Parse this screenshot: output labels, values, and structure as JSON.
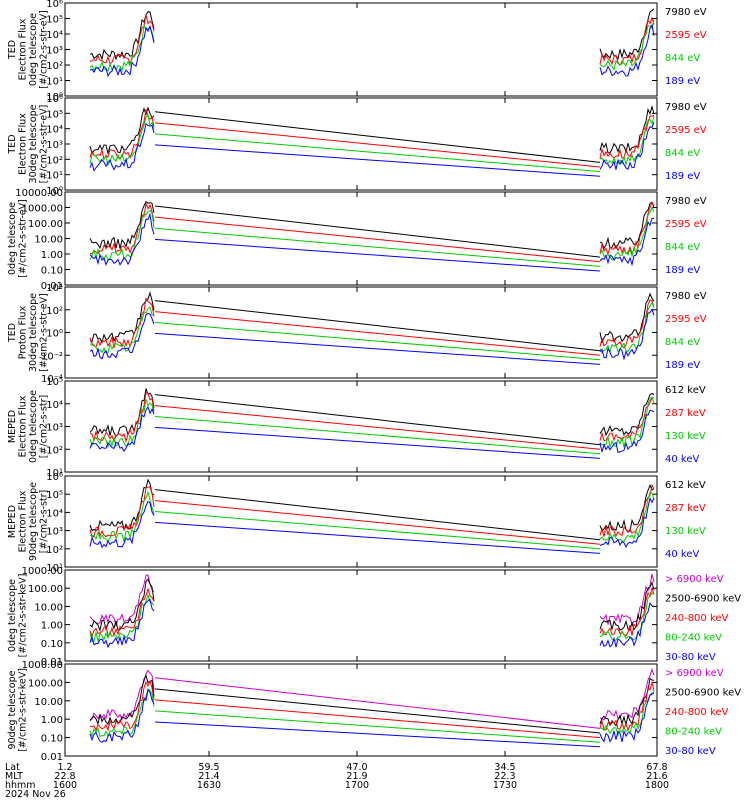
{
  "chart_data": [
    {
      "type": "line",
      "ylabel": [
        "TED",
        "Electron Flux",
        "0deg telescope",
        "[#/cm2-s-str-eV]"
      ],
      "ytick_labels": [
        "10⁶",
        "10⁵",
        "10⁴",
        "10³",
        "10²",
        "10¹",
        "10⁰"
      ],
      "series": [
        {
          "name": "7980 eV",
          "color": "#000000"
        },
        {
          "name": "2595 eV",
          "color": "#ff0000"
        },
        {
          "name": "844 eV",
          "color": "#00cc00"
        },
        {
          "name": "189 eV",
          "color": "#0000ff"
        }
      ]
    },
    {
      "type": "line",
      "ylabel": [
        "TED",
        "Electron Flux",
        "30deg telescope",
        "[#/cm2-s-str-eV]"
      ],
      "ytick_labels": [
        "10⁶",
        "10⁵",
        "10⁴",
        "10³",
        "10²",
        "10¹",
        "10⁰"
      ],
      "series": [
        {
          "name": "7980 eV",
          "color": "#000000"
        },
        {
          "name": "2595 eV",
          "color": "#ff0000"
        },
        {
          "name": "844 eV",
          "color": "#00cc00"
        },
        {
          "name": "189 eV",
          "color": "#0000ff"
        }
      ]
    },
    {
      "type": "line",
      "ylabel": [
        "0deg telescope",
        "[#/cm2-s-str-eV]"
      ],
      "ytick_labels": [
        "10000.00",
        "1000.00",
        "100.00",
        "10.00",
        "1.00",
        "0.10",
        "0.01"
      ],
      "series": [
        {
          "name": "7980 eV",
          "color": "#000000"
        },
        {
          "name": "2595 eV",
          "color": "#ff0000"
        },
        {
          "name": "844 eV",
          "color": "#00cc00"
        },
        {
          "name": "189 eV",
          "color": "#0000ff"
        }
      ]
    },
    {
      "type": "line",
      "ylabel": [
        "TED",
        "Proton Flux",
        "30deg telescope",
        "[#/cm2-s-str-eV]"
      ],
      "ytick_labels": [
        "10⁴",
        "10²",
        "10⁰",
        "10⁻²",
        "10⁻⁴"
      ],
      "series": [
        {
          "name": "7980 eV",
          "color": "#000000"
        },
        {
          "name": "2595 eV",
          "color": "#ff0000"
        },
        {
          "name": "844 eV",
          "color": "#00cc00"
        },
        {
          "name": "189 eV",
          "color": "#0000ff"
        }
      ]
    },
    {
      "type": "line",
      "ylabel": [
        "MEPED",
        "Electron Flux",
        "0deg telescope",
        "[#/cm2-s-str]"
      ],
      "ytick_labels": [
        "10⁵",
        "10⁴",
        "10³",
        "10²",
        "10¹"
      ],
      "series": [
        {
          "name": "612 keV",
          "color": "#000000"
        },
        {
          "name": "287 keV",
          "color": "#ff0000"
        },
        {
          "name": "130 keV",
          "color": "#00cc00"
        },
        {
          "name": "40 keV",
          "color": "#0000ff"
        }
      ]
    },
    {
      "type": "line",
      "ylabel": [
        "MEPED",
        "Electron Flux",
        "90deg telescope",
        "[#/cm2-s-str]"
      ],
      "ytick_labels": [
        "10⁶",
        "10⁵",
        "10⁴",
        "10³",
        "10²",
        "10¹"
      ],
      "series": [
        {
          "name": "612 keV",
          "color": "#000000"
        },
        {
          "name": "287 keV",
          "color": "#ff0000"
        },
        {
          "name": "130 keV",
          "color": "#00cc00"
        },
        {
          "name": "40 keV",
          "color": "#0000ff"
        }
      ]
    },
    {
      "type": "line",
      "ylabel": [
        "0deg telescope",
        "[#/cm2-s-str-keV]"
      ],
      "ytick_labels": [
        "1000.00",
        "100.00",
        "10.00",
        "1.00",
        "0.10",
        "0.01"
      ],
      "series": [
        {
          "name": "> 6900 keV",
          "color": "#cc00cc"
        },
        {
          "name": "2500-6900 keV",
          "color": "#000000"
        },
        {
          "name": "240-800 keV",
          "color": "#ff0000"
        },
        {
          "name": "80-240 keV",
          "color": "#00cc00"
        },
        {
          "name": "30-80 keV",
          "color": "#0000ff"
        }
      ]
    },
    {
      "type": "line",
      "ylabel": [
        "90deg telescope",
        "[#/cm2-s-str-keV]"
      ],
      "ytick_labels": [
        "1000.00",
        "100.00",
        "10.00",
        "1.00",
        "0.10",
        "0.01"
      ],
      "series": [
        {
          "name": "> 6900 keV",
          "color": "#cc00cc"
        },
        {
          "name": "2500-6900 keV",
          "color": "#000000"
        },
        {
          "name": "240-800 keV",
          "color": "#ff0000"
        },
        {
          "name": "80-240 keV",
          "color": "#00cc00"
        },
        {
          "name": "30-80 keV",
          "color": "#0000ff"
        }
      ]
    }
  ],
  "xaxis": {
    "row_labels": [
      "Lat",
      "MLT",
      "hhmm"
    ],
    "date": "2024 Nov 26",
    "ticks": [
      {
        "lat": "1.2",
        "mlt": "22.8",
        "hhmm": "1600"
      },
      {
        "lat": "59.5",
        "mlt": "21.4",
        "hhmm": "1630"
      },
      {
        "lat": "47.0",
        "mlt": "21.9",
        "hhmm": "1700"
      },
      {
        "lat": "34.5",
        "mlt": "22.3",
        "hhmm": "1730"
      },
      {
        "lat": "67.8",
        "mlt": "21.6",
        "hhmm": "1800"
      }
    ]
  }
}
